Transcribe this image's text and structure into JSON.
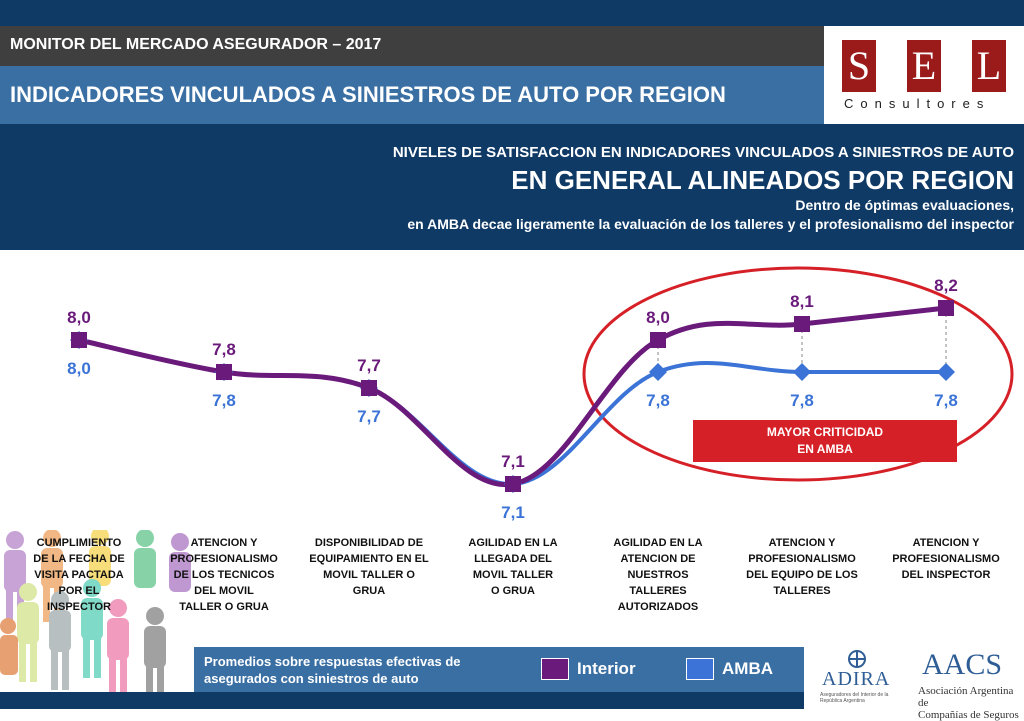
{
  "header": {
    "title": "MONITOR DEL MERCADO ASEGURADOR – 2017",
    "subtitle": "INDICADORES VINCULADOS A SINIESTROS DE AUTO POR REGION"
  },
  "logo": {
    "letters": [
      "S",
      "E",
      "L"
    ],
    "sub": "Consultores"
  },
  "banner": {
    "line1": "NIVELES DE SATISFACCION EN INDICADORES VINCULADOS A SINIESTROS DE AUTO",
    "line2": "EN GENERAL ALINEADOS POR REGION",
    "line3": "Dentro de óptimas evaluaciones,",
    "line4": "en AMBA decae ligeramente la evaluación de los talleres y el profesionalismo del inspector"
  },
  "chart_data": {
    "type": "line",
    "categories": [
      "CUMPLIMIENTO DE LA FECHA DE VISITA PACTADA POR EL INSPECTOR",
      "ATENCION Y PROFESIONALISMO DE LOS TECNICOS DEL MOVIL TALLER O GRUA",
      "DISPONIBILIDAD DE EQUIPAMIENTO EN EL MOVIL TALLER O GRUA",
      "AGILIDAD EN LA LLEGADA DEL MOVIL TALLER O GRUA",
      "AGILIDAD EN LA ATENCION DE NUESTROS TALLERES AUTORIZADOS",
      "ATENCION Y PROFESIONALISMO DEL EQUIPO DE LOS TALLERES",
      "ATENCION Y PROFESIONALISMO DEL INSPECTOR"
    ],
    "series": [
      {
        "name": "Interior",
        "color": "#6a1a7a",
        "values": [
          8.0,
          7.8,
          7.7,
          7.1,
          8.0,
          8.1,
          8.2
        ],
        "labels": [
          "8,0",
          "7,8",
          "7,7",
          "7,1",
          "8,0",
          "8,1",
          "8,2"
        ]
      },
      {
        "name": "AMBA",
        "color": "#3b73d6",
        "values": [
          8.0,
          7.8,
          7.7,
          7.1,
          7.8,
          7.8,
          7.8
        ],
        "labels": [
          "8,0",
          "7,8",
          "7,7",
          "7,1",
          "7,8",
          "7,8",
          "7,8"
        ]
      }
    ],
    "annotation": "MAYOR CRITICIDAD EN AMBA"
  },
  "category_lines": [
    [
      "CUMPLIMIENTO",
      "DE LA FECHA DE",
      "VISITA PACTADA",
      "POR EL",
      "INSPECTOR"
    ],
    [
      "ATENCION Y",
      "PROFESIONALISMO",
      "DE LOS TECNICOS",
      "DEL MOVIL",
      "TALLER O GRUA"
    ],
    [
      "DISPONIBILIDAD DE",
      "EQUIPAMIENTO EN EL",
      "MOVIL TALLER O",
      "GRUA"
    ],
    [
      "AGILIDAD EN LA",
      "LLEGADA DEL",
      "MOVIL TALLER",
      "O GRUA"
    ],
    [
      "AGILIDAD EN LA",
      "ATENCION DE",
      "NUESTROS",
      "TALLERES",
      "AUTORIZADOS"
    ],
    [
      "ATENCION Y",
      "PROFESIONALISMO",
      "DEL EQUIPO DE LOS",
      "TALLERES"
    ],
    [
      "ATENCION Y",
      "PROFESIONALISMO",
      "DEL INSPECTOR"
    ]
  ],
  "critical_box": {
    "line1": "MAYOR CRITICIDAD",
    "line2": "EN AMBA"
  },
  "legend": {
    "note_line1": "Promedios sobre respuestas efectivas de",
    "note_line2": "asegurados con siniestros de auto",
    "interior": "Interior",
    "amba": "AMBA",
    "interior_color": "#6a1a7a",
    "amba_color": "#3b73d6"
  },
  "adira": {
    "name": "ADIRA",
    "sub": "Aseguradores del Interior de la República Argentina"
  },
  "aacs": {
    "name": "AACS",
    "sub_line1": "Asociación Argentina de",
    "sub_line2": "Compañías de Seguros"
  }
}
